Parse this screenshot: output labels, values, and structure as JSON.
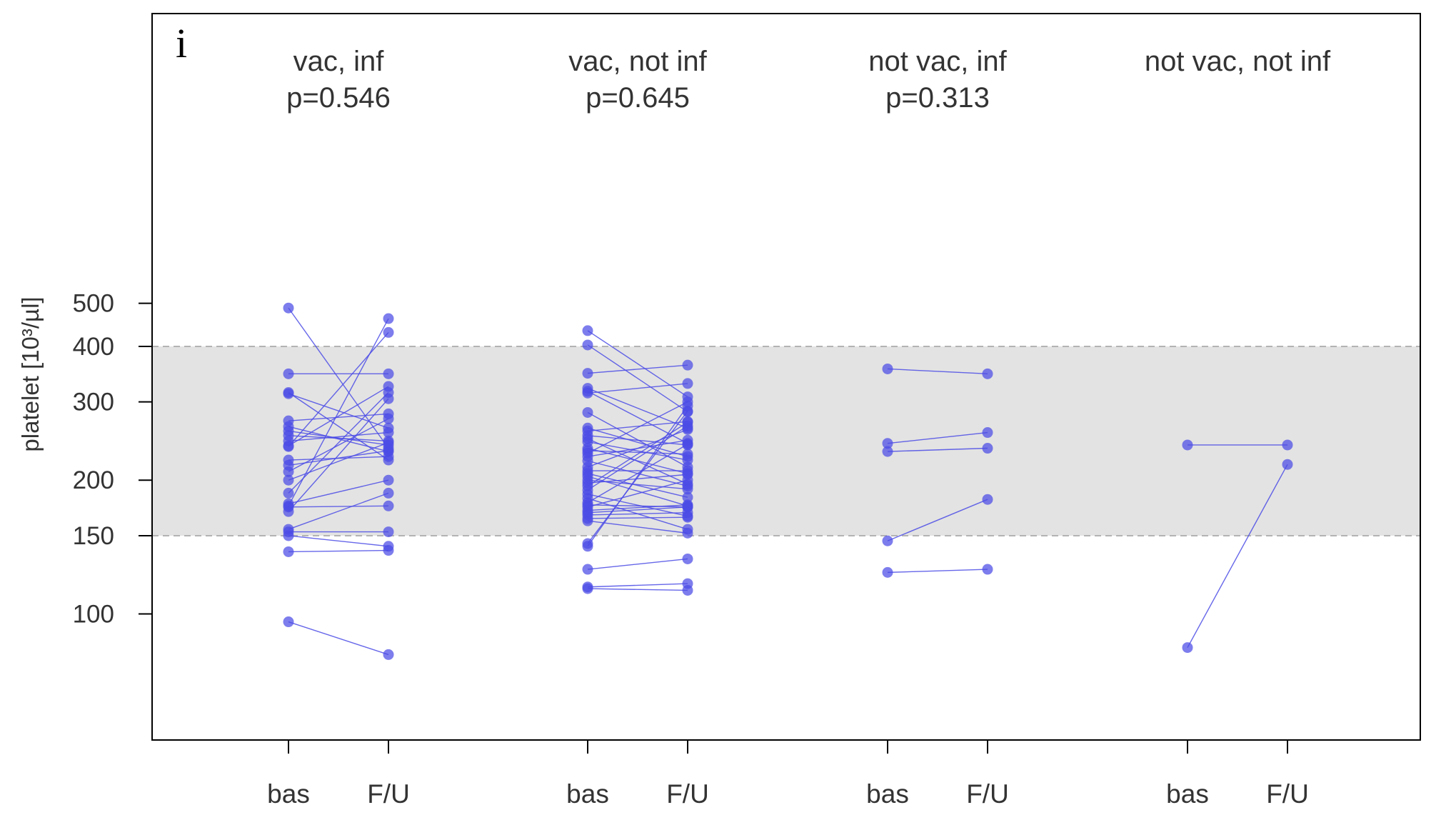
{
  "chart_data": {
    "type": "scatter",
    "panel_label": "i",
    "ylabel": "platelet [10³/µl]",
    "y_scale": "log",
    "ylim": [
      70,
      750
    ],
    "y_ticks": [
      100,
      150,
      200,
      300,
      400,
      500
    ],
    "y_tick_labels": [
      "100",
      "150",
      "200",
      "300",
      "400",
      "500"
    ],
    "reference_band": {
      "low": 150,
      "high": 400,
      "color": "#e3e3e3",
      "line_color": "#b3b3b3"
    },
    "point_color": "#4b4be6",
    "x_tick_labels": [
      "bas",
      "F/U"
    ],
    "groups": [
      {
        "title": "vac, inf",
        "p_value": "p=0.546",
        "pairs": [
          [
            488,
            236
          ],
          [
            347,
            347
          ],
          [
            315,
            222
          ],
          [
            313,
            262
          ],
          [
            272,
            282
          ],
          [
            264,
            232
          ],
          [
            258,
            240
          ],
          [
            252,
            245
          ],
          [
            245,
            256
          ],
          [
            239,
            325
          ],
          [
            238,
            430
          ],
          [
            222,
            226
          ],
          [
            216,
            233
          ],
          [
            209,
            275
          ],
          [
            200,
            243
          ],
          [
            187,
            315
          ],
          [
            177,
            200
          ],
          [
            175,
            462
          ],
          [
            174,
            175
          ],
          [
            170,
            305
          ],
          [
            155,
            187
          ],
          [
            153,
            153
          ],
          [
            150,
            142
          ],
          [
            138,
            139
          ],
          [
            96,
            81
          ]
        ]
      },
      {
        "title": "vac, not inf",
        "p_value": "p=0.645",
        "pairs": [
          [
            434,
            308
          ],
          [
            403,
            285
          ],
          [
            348,
            363
          ],
          [
            322,
            262
          ],
          [
            317,
            242
          ],
          [
            314,
            330
          ],
          [
            284,
            214
          ],
          [
            262,
            226
          ],
          [
            258,
            271
          ],
          [
            252,
            240
          ],
          [
            248,
            196
          ],
          [
            244,
            222
          ],
          [
            236,
            207
          ],
          [
            233,
            229
          ],
          [
            230,
            300
          ],
          [
            226,
            246
          ],
          [
            221,
            194
          ],
          [
            214,
            260
          ],
          [
            210,
            210
          ],
          [
            207,
            183
          ],
          [
            204,
            175
          ],
          [
            200,
            191
          ],
          [
            197,
            206
          ],
          [
            194,
            270
          ],
          [
            190,
            265
          ],
          [
            186,
            166
          ],
          [
            182,
            155
          ],
          [
            178,
            241
          ],
          [
            176,
            174
          ],
          [
            174,
            200
          ],
          [
            171,
            176
          ],
          [
            169,
            174
          ],
          [
            167,
            169
          ],
          [
            164,
            165
          ],
          [
            162,
            152
          ],
          [
            144,
            286
          ],
          [
            142,
            294
          ],
          [
            126,
            133
          ],
          [
            115,
            117
          ],
          [
            114,
            113
          ]
        ]
      },
      {
        "title": "not vac, inf",
        "p_value": "p=0.313",
        "pairs": [
          [
            356,
            347
          ],
          [
            242,
            256
          ],
          [
            232,
            236
          ],
          [
            146,
            181
          ],
          [
            124,
            126
          ]
        ]
      },
      {
        "title": "not vac, not inf",
        "p_value": "",
        "pairs": [
          [
            240,
            240
          ],
          [
            84,
            217
          ]
        ]
      }
    ]
  }
}
